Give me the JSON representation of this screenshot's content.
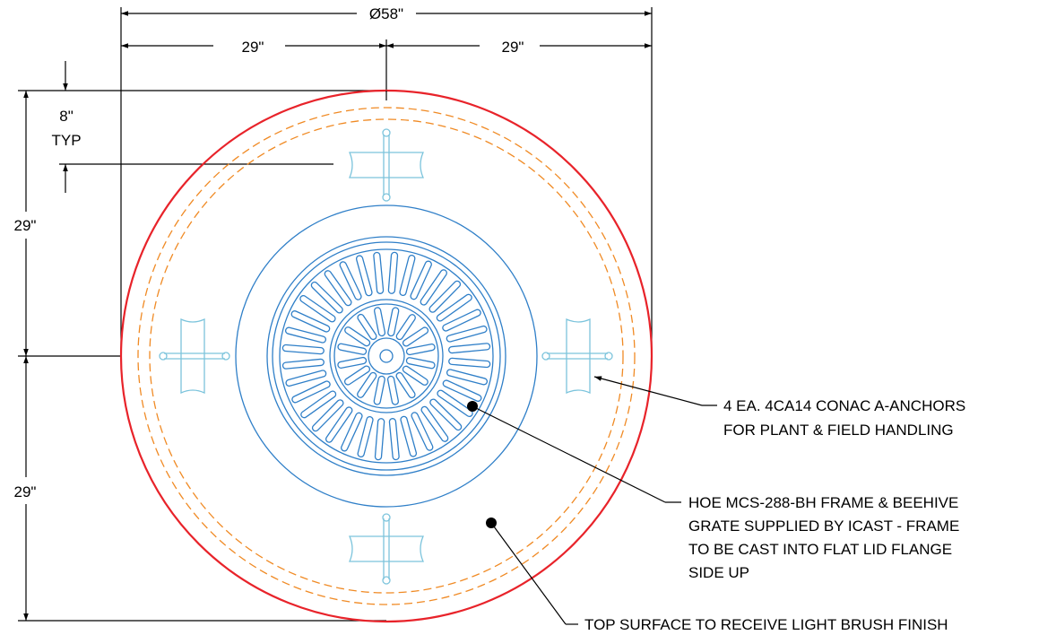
{
  "dimensions": {
    "overall_diameter": "Ø58\"",
    "left_half_width": "29\"",
    "right_half_width": "29\"",
    "anchor_offset": "8\"",
    "anchor_offset_qualifier": "TYP",
    "upper_half_height": "29\"",
    "lower_half_height": "29\""
  },
  "notes": {
    "anchors_line1": "4 EA. 4CA14 CONAC A-ANCHORS",
    "anchors_line2": "FOR PLANT & FIELD HANDLING",
    "frame_line1": "HOE MCS-288-BH FRAME & BEEHIVE",
    "frame_line2": "GRATE SUPPLIED BY ICAST - FRAME",
    "frame_line3": "TO BE CAST INTO FLAT LID FLANGE",
    "frame_line4": "SIDE UP",
    "surface_line1": "TOP SURFACE TO RECEIVE LIGHT BRUSH FINISH"
  },
  "colors": {
    "lid_outline": "#e8232a",
    "reinforcement_hoops": "#f08a24",
    "frame_and_grate": "#2f7fc8",
    "anchors": "#7cc4dc",
    "dimension_lines": "#000000"
  }
}
